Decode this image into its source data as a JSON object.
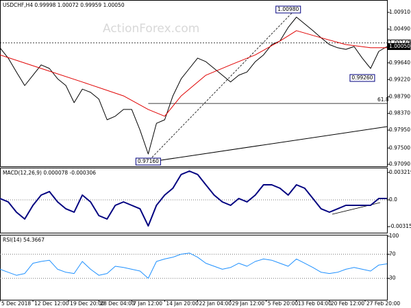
{
  "chart_data": [
    {
      "type": "line",
      "title": "USDCHF,H4  0.99998 1.00072 0.99959 1.00050",
      "watermark": "ActionForex.com",
      "x": [
        0,
        3,
        6,
        9,
        12,
        15,
        18,
        21,
        24,
        27,
        30,
        33,
        36,
        39,
        42,
        45,
        48,
        51,
        54,
        57,
        60,
        63,
        66,
        69,
        72,
        75,
        78,
        81,
        84,
        87,
        90,
        93,
        96,
        99,
        102,
        105,
        108,
        111,
        114,
        117,
        120,
        123,
        126,
        129,
        132,
        135,
        138,
        141
      ],
      "series": [
        {
          "color": "#000000",
          "values": [
            1.0002,
            0.9976,
            0.9941,
            0.9907,
            0.9933,
            0.9959,
            0.995,
            0.9924,
            0.9907,
            0.9864,
            0.9898,
            0.989,
            0.9873,
            0.9821,
            0.983,
            0.9847,
            0.9847,
            0.9795,
            0.9735,
            0.9812,
            0.9821,
            0.9881,
            0.9924,
            0.995,
            0.9976,
            0.9967,
            0.995,
            0.9933,
            0.9916,
            0.9933,
            0.9941,
            0.9967,
            0.9984,
            1.001,
            1.0019,
            1.0053,
            1.0079,
            1.0062,
            1.0045,
            1.0027,
            1.001,
            1.0002,
            0.9998,
            1.0005,
            0.9976,
            0.995,
            0.9993,
            1.0005
          ]
        },
        {
          "color": "#e00000",
          "x": [
            0,
            15,
            30,
            45,
            54,
            60,
            66,
            75,
            84,
            93,
            102,
            108,
            117,
            126,
            135,
            141
          ],
          "values": [
            0.9984,
            0.995,
            0.9916,
            0.9881,
            0.9847,
            0.983,
            0.9881,
            0.9933,
            0.9959,
            0.9984,
            1.0019,
            1.0045,
            1.0027,
            1.001,
            1.0002,
            1.0002
          ]
        }
      ],
      "annotations": [
        {
          "label": "1.00980",
          "x": 105,
          "y": 1.0098
        },
        {
          "label": "0.97160",
          "x": 54,
          "y": 0.9716
        },
        {
          "label": "0.99260",
          "x": 132,
          "y": 0.9926
        }
      ],
      "price_labels": [
        {
          "value": 1.0014,
          "label": "1.00140"
        },
        {
          "value": 1.0005,
          "label": "1.00050"
        }
      ],
      "fib": {
        "label": "61.8",
        "value": 0.9862,
        "x": 54
      },
      "xlim": [
        0,
        141
      ],
      "ylim": [
        0.9704,
        1.0122
      ],
      "yticks": [
        {
          "value": 1.0091,
          "label": "1.00910"
        },
        {
          "value": 1.0049,
          "label": "1.00490"
        },
        {
          "value": 0.9964,
          "label": "0.99640"
        },
        {
          "value": 0.9922,
          "label": "0.99220"
        },
        {
          "value": 0.9879,
          "label": "0.98790"
        },
        {
          "value": 0.9837,
          "label": "0.98370"
        },
        {
          "value": 0.9795,
          "label": "0.97950"
        },
        {
          "value": 0.975,
          "label": "0.97500"
        },
        {
          "value": 0.9709,
          "label": "0.97090"
        }
      ]
    },
    {
      "type": "line",
      "title": "MACD(12,26,9) 0.000078 -0.000306",
      "x": [
        0,
        3,
        6,
        9,
        12,
        15,
        18,
        21,
        24,
        27,
        30,
        33,
        36,
        39,
        42,
        45,
        48,
        51,
        54,
        57,
        60,
        63,
        66,
        69,
        72,
        75,
        78,
        81,
        84,
        87,
        90,
        93,
        96,
        99,
        102,
        105,
        108,
        111,
        114,
        117,
        120,
        123,
        126,
        129,
        132,
        135,
        138,
        141
      ],
      "series": [
        {
          "color": "#000080",
          "values": [
            0.00016,
            -0.00024,
            -0.00145,
            -0.00225,
            -0.00064,
            0.00056,
            0.00097,
            -0.00024,
            -0.00105,
            -0.00145,
            0.00056,
            -0.00024,
            -0.00185,
            -0.00225,
            -0.00064,
            -0.00024,
            -0.00064,
            -0.00105,
            -0.00306,
            -0.00064,
            0.00056,
            0.00137,
            0.00298,
            0.00338,
            0.00298,
            0.00177,
            0.00056,
            -0.00024,
            -0.00064,
            0.00016,
            -0.00024,
            0.00056,
            0.00177,
            0.00177,
            0.00137,
            0.00056,
            0.00177,
            0.00137,
            0.00016,
            -0.00105,
            -0.00145,
            -0.00105,
            -0.00064,
            -0.00064,
            -0.00064,
            -0.00064,
            0.00016,
            0.00016
          ]
        }
      ],
      "reference_lines": [
        0
      ],
      "xlim": [
        0,
        141
      ],
      "ylim": [
        -0.00386,
        0.00378
      ],
      "yticks": [
        0.003219,
        {
          "value": 0,
          "label": "0.0"
        },
        -0.003153
      ]
    },
    {
      "type": "line",
      "title": "RSI(14) 54.3667",
      "x": [
        0,
        3,
        6,
        9,
        12,
        15,
        18,
        21,
        24,
        27,
        30,
        33,
        36,
        39,
        42,
        45,
        48,
        51,
        54,
        57,
        60,
        63,
        66,
        69,
        72,
        75,
        78,
        81,
        84,
        87,
        90,
        93,
        96,
        99,
        102,
        105,
        108,
        111,
        114,
        117,
        120,
        123,
        126,
        129,
        132,
        135,
        138,
        141
      ],
      "series": [
        {
          "color": "#1e90ff",
          "values": [
            45,
            40,
            35,
            38,
            55,
            58,
            60,
            45,
            40,
            38,
            58,
            45,
            35,
            38,
            50,
            48,
            45,
            42,
            30,
            58,
            62,
            65,
            70,
            72,
            65,
            55,
            50,
            45,
            48,
            55,
            50,
            58,
            62,
            60,
            55,
            50,
            62,
            55,
            48,
            40,
            38,
            40,
            45,
            48,
            45,
            42,
            52,
            54
          ]
        }
      ],
      "reference_lines": [
        70,
        30
      ],
      "xlim": [
        0,
        141
      ],
      "ylim": [
        -5.7,
        102.3
      ],
      "yticks": [
        100,
        70,
        30
      ],
      "xticks": [
        {
          "value": 0,
          "label": "5 Dec 2018"
        },
        {
          "value": 12,
          "label": "12 Dec 12:00"
        },
        {
          "value": 25,
          "label": "19 Dec 20:00"
        },
        {
          "value": 36,
          "label": "28 Dec 04:00"
        },
        {
          "value": 48,
          "label": "7 Jan 12:00"
        },
        {
          "value": 60,
          "label": "14 Jan 20:00"
        },
        {
          "value": 72,
          "label": "22 Jan 04:00"
        },
        {
          "value": 84,
          "label": "29 Jan 12:00"
        },
        {
          "value": 97,
          "label": "5 Feb 20:00"
        },
        {
          "value": 108,
          "label": "13 Feb 04:00"
        },
        {
          "value": 120,
          "label": "20 Feb 12:00"
        },
        {
          "value": 133,
          "label": "27 Feb 20:00"
        }
      ]
    }
  ]
}
